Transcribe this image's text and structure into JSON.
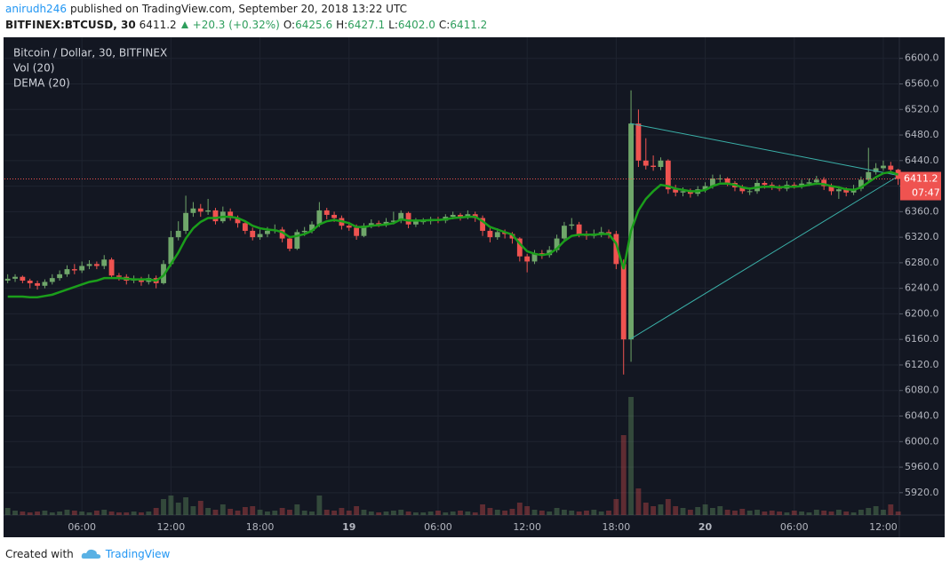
{
  "header": {
    "user": "anirudh246",
    "published": "published on TradingView.com, September 20, 2018 13:22 UTC",
    "symbol": "BITFINEX:BTCUSD, 30",
    "last": "6411.2",
    "change": "+20.3 (+0.32%)",
    "ohlc": [
      {
        "label": "O:",
        "value": "6425.6"
      },
      {
        "label": "H:",
        "value": "6427.1"
      },
      {
        "label": "L:",
        "value": "6402.0"
      },
      {
        "label": "C:",
        "value": "6411.2"
      }
    ]
  },
  "footer": {
    "created": "Created with",
    "brand": "TradingView"
  },
  "chart_data": {
    "type": "candlestick",
    "title": "Bitcoin / Dollar, 30, BITFINEX",
    "volume_label": "Vol (20)",
    "up_color": "#6fa66a",
    "down_color": "#ef5350",
    "countdown": "07:47",
    "ylim": [
      5885,
      6633
    ],
    "yticks": [
      {
        "value": 5920,
        "label": "5920.0"
      },
      {
        "value": 5960,
        "label": "5960.0"
      },
      {
        "value": 6000,
        "label": "6000.0"
      },
      {
        "value": 6040,
        "label": "6040.0"
      },
      {
        "value": 6080,
        "label": "6080.0"
      },
      {
        "value": 6120,
        "label": "6120.0"
      },
      {
        "value": 6160,
        "label": "6160.0"
      },
      {
        "value": 6200,
        "label": "6200.0"
      },
      {
        "value": 6240,
        "label": "6240.0"
      },
      {
        "value": 6280,
        "label": "6280.0"
      },
      {
        "value": 6320,
        "label": "6320.0"
      },
      {
        "value": 6360,
        "label": "6360.0"
      },
      {
        "value": 6400,
        "label": "6400.0"
      },
      {
        "value": 6440,
        "label": "6440.0"
      },
      {
        "value": 6480,
        "label": "6480.0"
      },
      {
        "value": 6520,
        "label": "6520.0"
      },
      {
        "value": 6560,
        "label": "6560.0"
      },
      {
        "value": 6600,
        "label": "6600.0"
      }
    ],
    "xlim": [
      -0.44,
      120.16
    ],
    "xticks": [
      {
        "value": 10,
        "label": "06:00"
      },
      {
        "value": 22,
        "label": "12:00"
      },
      {
        "value": 34,
        "label": "18:00"
      },
      {
        "value": 46,
        "label": "19"
      },
      {
        "value": 58,
        "label": "06:00"
      },
      {
        "value": 70,
        "label": "12:00"
      },
      {
        "value": 82,
        "label": "18:00"
      },
      {
        "value": 94,
        "label": "20"
      },
      {
        "value": 106,
        "label": "06:00"
      },
      {
        "value": 118,
        "label": "12:00"
      }
    ],
    "grid": true,
    "open": [
      6252,
      6255,
      6258,
      6252,
      6248,
      6244,
      6250,
      6256,
      6262,
      6270,
      6268,
      6275,
      6278,
      6275,
      6285,
      6260,
      6258,
      6252,
      6255,
      6250,
      6256,
      6248,
      6278,
      6320,
      6330,
      6358,
      6365,
      6360,
      6362,
      6345,
      6360,
      6350,
      6342,
      6330,
      6320,
      6325,
      6330,
      6332,
      6318,
      6302,
      6328,
      6330,
      6340,
      6362,
      6355,
      6350,
      6338,
      6335,
      6322,
      6338,
      6342,
      6340,
      6344,
      6346,
      6358,
      6340,
      6345,
      6345,
      6348,
      6346,
      6352,
      6355,
      6352,
      6356,
      6350,
      6330,
      6320,
      6328,
      6325,
      6318,
      6290,
      6282,
      6295,
      6292,
      6300,
      6318,
      6338,
      6340,
      6325,
      6322,
      6325,
      6328,
      6325,
      6278,
      6160,
      6498,
      6440,
      6432,
      6430,
      6440,
      6395,
      6390,
      6392,
      6388,
      6395,
      6400,
      6412,
      6412,
      6405,
      6398,
      6392,
      6392,
      6405,
      6402,
      6398,
      6396,
      6402,
      6400,
      6404,
      6406,
      6410,
      6400,
      6392,
      6395,
      6390,
      6396,
      6410,
      6422,
      6428,
      6432,
      6425.6
    ],
    "high": [
      6262,
      6262,
      6260,
      6255,
      6252,
      6254,
      6262,
      6268,
      6276,
      6278,
      6282,
      6284,
      6282,
      6292,
      6288,
      6264,
      6262,
      6260,
      6258,
      6262,
      6260,
      6284,
      6330,
      6345,
      6385,
      6375,
      6372,
      6380,
      6366,
      6368,
      6365,
      6354,
      6346,
      6335,
      6332,
      6336,
      6340,
      6336,
      6322,
      6332,
      6336,
      6345,
      6375,
      6366,
      6360,
      6354,
      6344,
      6340,
      6342,
      6348,
      6346,
      6350,
      6360,
      6362,
      6360,
      6350,
      6350,
      6352,
      6352,
      6356,
      6360,
      6358,
      6362,
      6360,
      6354,
      6334,
      6334,
      6332,
      6328,
      6320,
      6294,
      6300,
      6300,
      6306,
      6324,
      6344,
      6350,
      6344,
      6330,
      6332,
      6336,
      6332,
      6330,
      6285,
      6550,
      6520,
      6475,
      6448,
      6445,
      6442,
      6402,
      6398,
      6396,
      6400,
      6406,
      6418,
      6418,
      6414,
      6408,
      6402,
      6398,
      6410,
      6408,
      6406,
      6402,
      6408,
      6406,
      6410,
      6412,
      6416,
      6414,
      6404,
      6400,
      6398,
      6402,
      6415,
      6460,
      6436,
      6440,
      6438,
      6427.1
    ],
    "low": [
      6248,
      6250,
      6248,
      6240,
      6238,
      6240,
      6246,
      6252,
      6258,
      6262,
      6264,
      6270,
      6270,
      6270,
      6256,
      6252,
      6246,
      6248,
      6244,
      6246,
      6240,
      6246,
      6274,
      6315,
      6325,
      6352,
      6352,
      6355,
      6340,
      6342,
      6346,
      6335,
      6325,
      6315,
      6316,
      6320,
      6326,
      6312,
      6298,
      6300,
      6322,
      6326,
      6336,
      6348,
      6344,
      6332,
      6330,
      6316,
      6320,
      6334,
      6336,
      6336,
      6340,
      6342,
      6334,
      6336,
      6340,
      6340,
      6342,
      6342,
      6348,
      6346,
      6348,
      6344,
      6322,
      6312,
      6316,
      6318,
      6310,
      6282,
      6265,
      6278,
      6286,
      6288,
      6296,
      6314,
      6332,
      6320,
      6316,
      6318,
      6320,
      6318,
      6270,
      6105,
      6125,
      6430,
      6426,
      6424,
      6425,
      6388,
      6384,
      6384,
      6382,
      6384,
      6390,
      6396,
      6406,
      6400,
      6392,
      6388,
      6386,
      6388,
      6396,
      6394,
      6392,
      6392,
      6396,
      6396,
      6400,
      6402,
      6394,
      6386,
      6380,
      6384,
      6386,
      6392,
      6406,
      6418,
      6424,
      6420,
      6402
    ],
    "close": [
      6255,
      6258,
      6252,
      6248,
      6244,
      6250,
      6256,
      6262,
      6270,
      6268,
      6275,
      6278,
      6275,
      6285,
      6260,
      6258,
      6252,
      6255,
      6250,
      6256,
      6248,
      6278,
      6320,
      6330,
      6358,
      6365,
      6360,
      6362,
      6345,
      6360,
      6350,
      6342,
      6330,
      6320,
      6325,
      6330,
      6332,
      6318,
      6302,
      6328,
      6330,
      6340,
      6362,
      6355,
      6350,
      6338,
      6335,
      6322,
      6338,
      6342,
      6340,
      6344,
      6346,
      6358,
      6340,
      6345,
      6345,
      6348,
      6346,
      6352,
      6355,
      6352,
      6356,
      6350,
      6330,
      6320,
      6328,
      6325,
      6318,
      6290,
      6282,
      6295,
      6292,
      6300,
      6318,
      6338,
      6340,
      6325,
      6322,
      6325,
      6328,
      6325,
      6278,
      6160,
      6498,
      6440,
      6432,
      6430,
      6440,
      6395,
      6390,
      6392,
      6388,
      6395,
      6400,
      6412,
      6412,
      6405,
      6398,
      6392,
      6392,
      6405,
      6402,
      6398,
      6396,
      6402,
      6400,
      6404,
      6406,
      6410,
      6400,
      6392,
      6395,
      6390,
      6396,
      6410,
      6422,
      6428,
      6432,
      6425.6,
      6411.2
    ],
    "volume": [
      8,
      5,
      4,
      3,
      4,
      5,
      3,
      4,
      6,
      5,
      4,
      3,
      5,
      6,
      4,
      3,
      3,
      4,
      3,
      4,
      8,
      18,
      22,
      14,
      20,
      10,
      16,
      8,
      6,
      12,
      7,
      5,
      9,
      10,
      6,
      4,
      5,
      8,
      6,
      12,
      5,
      4,
      22,
      6,
      5,
      8,
      5,
      10,
      6,
      4,
      3,
      4,
      5,
      6,
      4,
      3,
      3,
      4,
      5,
      3,
      4,
      5,
      4,
      3,
      12,
      8,
      6,
      5,
      7,
      14,
      10,
      6,
      5,
      4,
      8,
      6,
      5,
      4,
      5,
      6,
      4,
      5,
      18,
      90,
      133,
      30,
      14,
      10,
      12,
      18,
      10,
      8,
      6,
      9,
      12,
      8,
      10,
      6,
      5,
      7,
      5,
      6,
      4,
      5,
      4,
      3,
      5,
      4,
      3,
      6,
      5,
      4,
      6,
      4,
      3,
      6,
      8,
      10,
      6,
      12,
      4
    ],
    "dema": {
      "name": "DEMA (20)",
      "color": "#1b9e1b",
      "values": [
        6227,
        6227,
        6227,
        6226,
        6226,
        6228,
        6230,
        6234,
        6238,
        6242,
        6246,
        6250,
        6252,
        6256,
        6256,
        6256,
        6255,
        6254,
        6254,
        6254,
        6252,
        6260,
        6278,
        6296,
        6318,
        6334,
        6344,
        6350,
        6350,
        6352,
        6352,
        6350,
        6345,
        6338,
        6334,
        6332,
        6331,
        6328,
        6320,
        6322,
        6325,
        6330,
        6340,
        6345,
        6347,
        6345,
        6342,
        6336,
        6336,
        6338,
        6339,
        6340,
        6342,
        6348,
        6346,
        6346,
        6346,
        6347,
        6347,
        6348,
        6350,
        6351,
        6352,
        6352,
        6345,
        6336,
        6332,
        6328,
        6324,
        6310,
        6298,
        6294,
        6292,
        6294,
        6302,
        6314,
        6322,
        6324,
        6324,
        6324,
        6325,
        6325,
        6310,
        6270,
        6330,
        6362,
        6380,
        6392,
        6402,
        6400,
        6396,
        6394,
        6392,
        6392,
        6394,
        6400,
        6404,
        6404,
        6402,
        6398,
        6396,
        6398,
        6399,
        6399,
        6398,
        6399,
        6399,
        6400,
        6402,
        6404,
        6403,
        6400,
        6398,
        6395,
        6394,
        6398,
        6406,
        6414,
        6420,
        6422,
        6418
      ]
    }
  }
}
